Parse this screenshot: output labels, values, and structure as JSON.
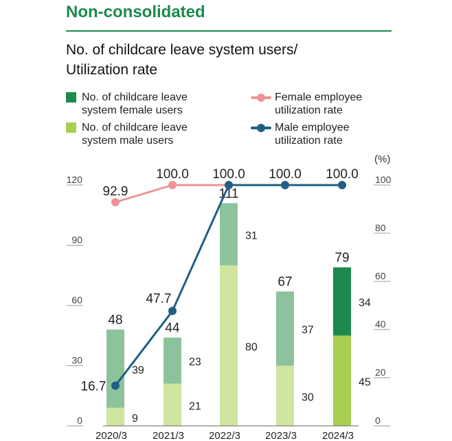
{
  "heading": "Non-consolidated",
  "title_line1": "No. of childcare leave system users/",
  "title_line2": "Utilization rate",
  "legend": {
    "female_users_1": "No. of childcare leave",
    "female_users_2": "system female users",
    "male_users_1": "No. of childcare leave",
    "male_users_2": "system male users",
    "female_rate_1": "Female employee",
    "female_rate_2": "utilization rate",
    "male_rate_1": "Male employee",
    "male_rate_2": "utilization rate"
  },
  "colors": {
    "female_bar_past": "#8dc39c",
    "female_bar_latest": "#1b8a4c",
    "male_bar_past": "#d0e59f",
    "male_bar_latest": "#a9cf52",
    "female_rate_line": "#ee9499",
    "male_rate_line": "#1f5f86",
    "heading": "#1b8a4c"
  },
  "chart_data": {
    "type": "bar+line",
    "categories": [
      "2020/3",
      "2021/3",
      "2022/3",
      "2023/3",
      "2024/3"
    ],
    "series": [
      {
        "name": "No. of childcare leave system male users",
        "kind": "stacked-bar",
        "axis": "left",
        "values": [
          9,
          21,
          80,
          30,
          45
        ]
      },
      {
        "name": "No. of childcare leave system female users",
        "kind": "stacked-bar",
        "axis": "left",
        "values": [
          39,
          23,
          31,
          37,
          34
        ]
      },
      {
        "name": "Female employee utilization rate",
        "kind": "line",
        "axis": "right",
        "values": [
          92.9,
          100.0,
          100.0,
          100.0,
          100.0
        ]
      },
      {
        "name": "Male employee utilization rate",
        "kind": "line",
        "axis": "right",
        "values": [
          16.7,
          47.7,
          100.0,
          100.0,
          100.0
        ]
      }
    ],
    "totals": [
      48,
      44,
      111,
      67,
      79
    ],
    "total_labels": [
      "48",
      "44",
      "111",
      "67",
      "79"
    ],
    "male_labels": [
      "9",
      "21",
      "80",
      "30",
      "45"
    ],
    "female_labels": [
      "39",
      "23",
      "31",
      "37",
      "34"
    ],
    "female_rate_labels": [
      "92.9",
      "100.0",
      "100.0",
      "100.0",
      "100.0"
    ],
    "male_rate_labels": [
      "16.7",
      "47.7"
    ],
    "left_axis": {
      "ticks": [
        "0",
        "30",
        "60",
        "90",
        "120"
      ],
      "ylim": [
        0,
        120
      ]
    },
    "right_axis": {
      "unit": "(%)",
      "ticks": [
        "0",
        "20",
        "40",
        "60",
        "80",
        "100"
      ],
      "ylim": [
        0,
        100
      ]
    }
  }
}
